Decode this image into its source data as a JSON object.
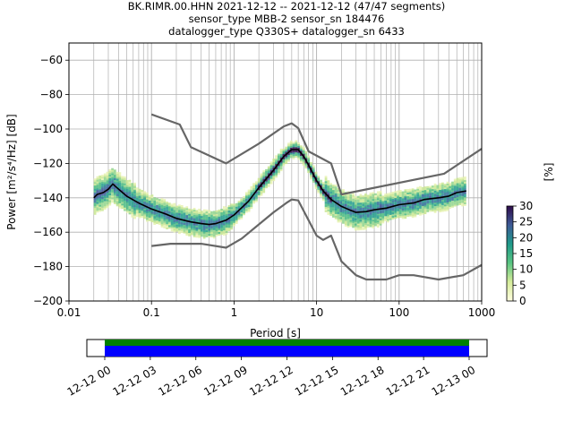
{
  "header": {
    "line1": "BK.RIMR.00.HHN   2021-12-12 -- 2021-12-12  (47/47 segments)",
    "line2": "sensor_type MBB-2 sensor_sn 184476",
    "line3": "datalogger_type Q330S+ datalogger_sn 6433"
  },
  "chart_data": {
    "type": "line",
    "title": "BK.RIMR.00.HHN   2021-12-12 -- 2021-12-12  (47/47 segments)",
    "xlabel": "Period [s]",
    "ylabel": "Power [m²/s⁴/Hz] [dB]",
    "xscale": "log",
    "xlim": [
      0.01,
      1000
    ],
    "ylim": [
      -200,
      -50
    ],
    "x_ticks": [
      "0.01",
      "0.1",
      "1",
      "10",
      "100",
      "1000"
    ],
    "y_ticks": [
      "−200",
      "−180",
      "−160",
      "−140",
      "−120",
      "−100",
      "−80",
      "−60"
    ],
    "grid": true,
    "colorbar": {
      "label": "[%]",
      "range": [
        0,
        30
      ],
      "ticks": [
        "0",
        "5",
        "10",
        "15",
        "20",
        "25",
        "30"
      ]
    },
    "series": [
      {
        "x": [
          0.1,
          0.22,
          0.3,
          0.8,
          2.0,
          4.0,
          5.0,
          6.0,
          8.0,
          15.0,
          20.0,
          350.0,
          1000.0
        ],
        "y": [
          -91.5,
          -97.4,
          -110.5,
          -120.0,
          -108.5,
          -98.5,
          -96.7,
          -99.5,
          -113.0,
          -120.0,
          -138.0,
          -126.0,
          -111.5
        ]
      },
      {
        "x": [
          0.1,
          0.17,
          0.4,
          0.8,
          1.24,
          3.0,
          4.3,
          5.0,
          6.0,
          10.0,
          12.0,
          15.0,
          20.0,
          30.0,
          40.0,
          70.0,
          100.0,
          150.0,
          300.0,
          600.0,
          1000.0
        ],
        "y": [
          -168.0,
          -166.7,
          -166.7,
          -169.0,
          -163.7,
          -148.5,
          -143.0,
          -141.0,
          -141.5,
          -162.0,
          -164.5,
          -162.0,
          -177.0,
          -185.0,
          -187.5,
          -187.5,
          -185.0,
          -185.0,
          -187.5,
          -185.0,
          -179.0
        ]
      },
      {
        "x": [
          0.02,
          0.022,
          0.026,
          0.03,
          0.034,
          0.04,
          0.05,
          0.07,
          0.1,
          0.15,
          0.2,
          0.3,
          0.4,
          0.5,
          0.6,
          0.8,
          1.0,
          1.5,
          2.0,
          3.0,
          4.0,
          5.0,
          6.0,
          7.0,
          8.0,
          10.0,
          12.0,
          15.0,
          20.0,
          25.0,
          30.0,
          40.0,
          50.0,
          70.0,
          100.0,
          150.0,
          200.0,
          300.0,
          400.0,
          500.0,
          650.0
        ],
        "y": [
          -140.0,
          -138.0,
          -137.0,
          -135.0,
          -132.0,
          -135.0,
          -139.0,
          -143.0,
          -146.5,
          -149.5,
          -152.0,
          -154.0,
          -155.0,
          -155.5,
          -155.0,
          -153.0,
          -150.0,
          -142.0,
          -134.0,
          -124.0,
          -116.0,
          -112.0,
          -112.0,
          -116.0,
          -121.0,
          -130.0,
          -136.0,
          -141.0,
          -145.0,
          -147.0,
          -148.5,
          -148.0,
          -147.0,
          -146.0,
          -144.0,
          -143.0,
          -141.0,
          -140.0,
          -139.0,
          -137.0,
          -136.0
        ]
      }
    ]
  },
  "timeline": {
    "ticks": [
      "12-12 00",
      "12-12 03",
      "12-12 06",
      "12-12 09",
      "12-12 12",
      "12-12 15",
      "12-12 18",
      "12-12 21",
      "12-13 00"
    ]
  }
}
